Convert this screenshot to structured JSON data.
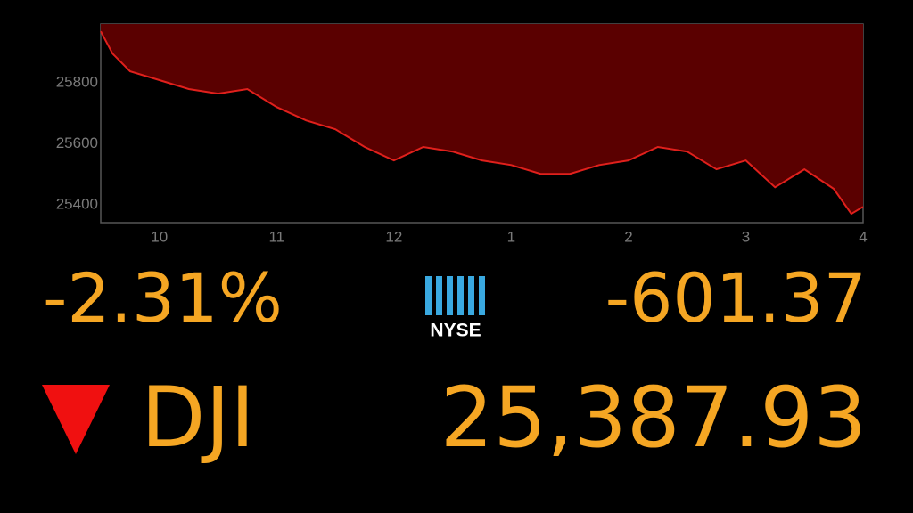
{
  "chart_data": {
    "type": "area",
    "x": [
      9.5,
      9.6,
      9.75,
      10,
      10.25,
      10.5,
      10.75,
      11,
      11.25,
      11.5,
      11.75,
      12,
      12.25,
      12.5,
      12.75,
      13,
      13.25,
      13.5,
      13.75,
      14,
      14.25,
      14.5,
      14.75,
      15,
      15.25,
      15.5,
      15.75,
      15.9,
      16
    ],
    "values": [
      25969,
      25896,
      25838,
      25809,
      25780,
      25765,
      25780,
      25721,
      25677,
      25648,
      25590,
      25546,
      25590,
      25575,
      25546,
      25531,
      25502,
      25502,
      25531,
      25546,
      25590,
      25575,
      25517,
      25546,
      25458,
      25517,
      25453,
      25371,
      25394
    ],
    "color": "#e0201c",
    "area_color": "#5a0000",
    "xlim": [
      9.5,
      16
    ],
    "xticks": [
      10,
      11,
      12,
      {
        "value": 13,
        "label": "1"
      },
      {
        "value": 14,
        "label": "2"
      },
      {
        "value": 15,
        "label": "3"
      },
      {
        "value": 16,
        "label": "4"
      }
    ],
    "ylim": [
      25342,
      25993
    ],
    "yticks": [
      25400,
      25600,
      25800
    ]
  },
  "quote": {
    "percent_change": "-2.31%",
    "exchange": "NYSE",
    "point_change": "-601.37",
    "symbol": "DJI",
    "price": "25,387.93"
  }
}
